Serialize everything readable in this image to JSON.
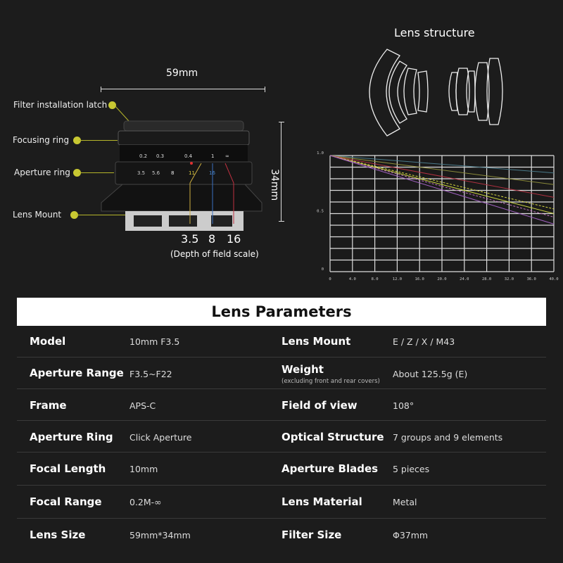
{
  "diagram": {
    "width_label": "59mm",
    "height_label": "34mm",
    "callouts": [
      "Filter installation latch",
      "Focusing ring",
      "Aperture ring",
      "Lens Mount"
    ],
    "dof_values": [
      "3.5",
      "8",
      "16"
    ],
    "dof_caption": "(Depth of field scale)",
    "lens_structure_title": "Lens structure"
  },
  "chart_data": {
    "type": "line",
    "xlim": [
      0,
      40
    ],
    "ylim": [
      0,
      1
    ],
    "x_ticks": [
      "0",
      "4.0",
      "8.0",
      "12.0",
      "16.0",
      "20.0",
      "24.0",
      "28.0",
      "32.0",
      "36.0",
      "40.0"
    ],
    "y_ticks": [
      "1.0",
      "0.5",
      "0"
    ],
    "grid": true,
    "series": [
      {
        "color": "#4a7a8a",
        "dashed": false,
        "x": [
          0,
          40
        ],
        "y": [
          1.0,
          0.85
        ]
      },
      {
        "color": "#8a8a3a",
        "dashed": false,
        "x": [
          0,
          40
        ],
        "y": [
          1.0,
          0.75
        ]
      },
      {
        "color": "#b03040",
        "dashed": false,
        "x": [
          0,
          40
        ],
        "y": [
          1.0,
          0.64
        ]
      },
      {
        "color": "#d8d840",
        "dashed": true,
        "x": [
          0,
          40
        ],
        "y": [
          1.0,
          0.54
        ]
      },
      {
        "color": "#c8d040",
        "dashed": false,
        "x": [
          0,
          40
        ],
        "y": [
          1.0,
          0.5
        ]
      },
      {
        "color": "#c070c0",
        "dashed": true,
        "x": [
          0,
          40
        ],
        "y": [
          1.0,
          0.47
        ]
      },
      {
        "color": "#a060c0",
        "dashed": false,
        "x": [
          0,
          40
        ],
        "y": [
          1.0,
          0.41
        ]
      }
    ]
  },
  "params": {
    "title": "Lens Parameters",
    "rows": [
      {
        "k1": "Model",
        "v1": "10mm F3.5",
        "k2": "Lens Mount",
        "v2": "E / Z / X / M43"
      },
      {
        "k1": "Aperture Range",
        "v1": "F3.5~F22",
        "k2": "Weight",
        "sub2": "(excluding front and rear covers)",
        "v2": "About 125.5g (E)"
      },
      {
        "k1": "Frame",
        "v1": "APS-C",
        "k2": "Field of view",
        "v2": "108°"
      },
      {
        "k1": "Aperture Ring",
        "v1": "Click Aperture",
        "k2": "Optical Structure",
        "v2": "7 groups and 9 elements"
      },
      {
        "k1": "Focal Length",
        "v1": "10mm",
        "k2": "Aperture Blades",
        "v2": "5 pieces"
      },
      {
        "k1": "Focal Range",
        "v1": "0.2M-∞",
        "k2": "Lens Material",
        "v2": "Metal"
      },
      {
        "k1": "Lens Size",
        "v1": "59mm*34mm",
        "k2": "Filter Size",
        "v2": "Φ37mm"
      }
    ]
  }
}
